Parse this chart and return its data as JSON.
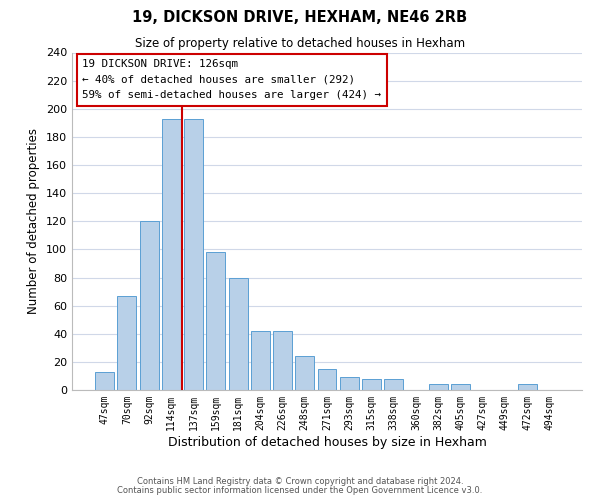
{
  "title": "19, DICKSON DRIVE, HEXHAM, NE46 2RB",
  "subtitle": "Size of property relative to detached houses in Hexham",
  "xlabel": "Distribution of detached houses by size in Hexham",
  "ylabel": "Number of detached properties",
  "bar_labels": [
    "47sqm",
    "70sqm",
    "92sqm",
    "114sqm",
    "137sqm",
    "159sqm",
    "181sqm",
    "204sqm",
    "226sqm",
    "248sqm",
    "271sqm",
    "293sqm",
    "315sqm",
    "338sqm",
    "360sqm",
    "382sqm",
    "405sqm",
    "427sqm",
    "449sqm",
    "472sqm",
    "494sqm"
  ],
  "bar_heights": [
    13,
    67,
    120,
    193,
    193,
    98,
    80,
    42,
    42,
    24,
    15,
    9,
    8,
    8,
    0,
    4,
    4,
    0,
    0,
    4,
    0
  ],
  "bar_color": "#b8d0e8",
  "bar_edge_color": "#5a9fd4",
  "vline_x_index": 3,
  "vline_color": "#cc0000",
  "ylim": [
    0,
    240
  ],
  "yticks": [
    0,
    20,
    40,
    60,
    80,
    100,
    120,
    140,
    160,
    180,
    200,
    220,
    240
  ],
  "annotation_title": "19 DICKSON DRIVE: 126sqm",
  "annotation_line1": "← 40% of detached houses are smaller (292)",
  "annotation_line2": "59% of semi-detached houses are larger (424) →",
  "annotation_box_color": "#ffffff",
  "annotation_box_edge": "#cc0000",
  "footer_line1": "Contains HM Land Registry data © Crown copyright and database right 2024.",
  "footer_line2": "Contains public sector information licensed under the Open Government Licence v3.0.",
  "background_color": "#ffffff",
  "grid_color": "#d0d8e8"
}
